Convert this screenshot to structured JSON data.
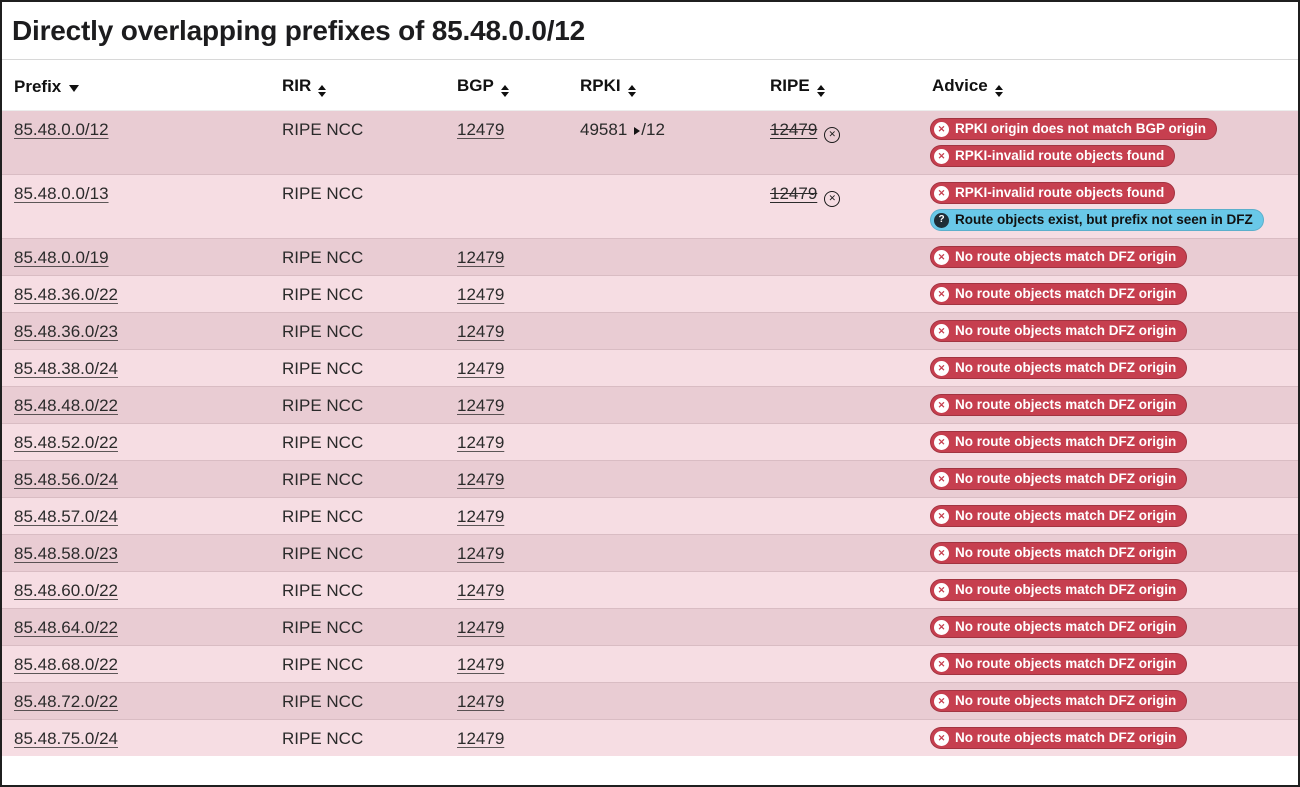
{
  "page": {
    "title": "Directly overlapping prefixes of 85.48.0.0/12"
  },
  "colors": {
    "row_stripe_dark": "#e9ccd3",
    "row_stripe_light": "#f6dde3",
    "row_border": "#d9bcc3",
    "badge_danger": "#c63f4f",
    "badge_danger_text": "#ffffff",
    "badge_info": "#69c8e8",
    "badge_info_text": "#111111",
    "badge_info_icon_bg": "#1f2d36",
    "link_text": "#2b2b2b"
  },
  "icons": {
    "danger_badge": "circle-x-icon",
    "danger_badge_glyph": "✕",
    "info_badge": "circle-question-icon",
    "info_badge_glyph": "?",
    "ripe_invalid": "circled-x-icon",
    "ripe_invalid_glyph": "✕",
    "prefix_sort": "triangle-down-icon",
    "column_sort": "triangle-up-down-icon",
    "rpki_max_length": "triangle-right-icon"
  },
  "table": {
    "columns": [
      {
        "key": "prefix",
        "label": "Prefix",
        "sort": "desc"
      },
      {
        "key": "rir",
        "label": "RIR",
        "sort": "both"
      },
      {
        "key": "bgp",
        "label": "BGP",
        "sort": "both"
      },
      {
        "key": "rpki",
        "label": "RPKI",
        "sort": "both"
      },
      {
        "key": "ripe",
        "label": "RIPE",
        "sort": "both"
      },
      {
        "key": "advice",
        "label": "Advice",
        "sort": "both"
      }
    ],
    "rows": [
      {
        "prefix": "85.48.0.0/12",
        "rir": "RIPE NCC",
        "bgp": "12479",
        "rpki": {
          "asn": "49581",
          "max_length": "/12"
        },
        "ripe": {
          "asn": "12479",
          "invalid": true
        },
        "advice": [
          {
            "type": "danger",
            "text": "RPKI origin does not match BGP origin"
          },
          {
            "type": "danger",
            "text": "RPKI-invalid route objects found"
          }
        ]
      },
      {
        "prefix": "85.48.0.0/13",
        "rir": "RIPE NCC",
        "bgp": null,
        "rpki": null,
        "ripe": {
          "asn": "12479",
          "invalid": true
        },
        "advice": [
          {
            "type": "danger",
            "text": "RPKI-invalid route objects found"
          },
          {
            "type": "info",
            "text": "Route objects exist, but prefix not seen in DFZ"
          }
        ]
      },
      {
        "prefix": "85.48.0.0/19",
        "rir": "RIPE NCC",
        "bgp": "12479",
        "rpki": null,
        "ripe": null,
        "advice": [
          {
            "type": "danger",
            "text": "No route objects match DFZ origin"
          }
        ]
      },
      {
        "prefix": "85.48.36.0/22",
        "rir": "RIPE NCC",
        "bgp": "12479",
        "rpki": null,
        "ripe": null,
        "advice": [
          {
            "type": "danger",
            "text": "No route objects match DFZ origin"
          }
        ]
      },
      {
        "prefix": "85.48.36.0/23",
        "rir": "RIPE NCC",
        "bgp": "12479",
        "rpki": null,
        "ripe": null,
        "advice": [
          {
            "type": "danger",
            "text": "No route objects match DFZ origin"
          }
        ]
      },
      {
        "prefix": "85.48.38.0/24",
        "rir": "RIPE NCC",
        "bgp": "12479",
        "rpki": null,
        "ripe": null,
        "advice": [
          {
            "type": "danger",
            "text": "No route objects match DFZ origin"
          }
        ]
      },
      {
        "prefix": "85.48.48.0/22",
        "rir": "RIPE NCC",
        "bgp": "12479",
        "rpki": null,
        "ripe": null,
        "advice": [
          {
            "type": "danger",
            "text": "No route objects match DFZ origin"
          }
        ]
      },
      {
        "prefix": "85.48.52.0/22",
        "rir": "RIPE NCC",
        "bgp": "12479",
        "rpki": null,
        "ripe": null,
        "advice": [
          {
            "type": "danger",
            "text": "No route objects match DFZ origin"
          }
        ]
      },
      {
        "prefix": "85.48.56.0/24",
        "rir": "RIPE NCC",
        "bgp": "12479",
        "rpki": null,
        "ripe": null,
        "advice": [
          {
            "type": "danger",
            "text": "No route objects match DFZ origin"
          }
        ]
      },
      {
        "prefix": "85.48.57.0/24",
        "rir": "RIPE NCC",
        "bgp": "12479",
        "rpki": null,
        "ripe": null,
        "advice": [
          {
            "type": "danger",
            "text": "No route objects match DFZ origin"
          }
        ]
      },
      {
        "prefix": "85.48.58.0/23",
        "rir": "RIPE NCC",
        "bgp": "12479",
        "rpki": null,
        "ripe": null,
        "advice": [
          {
            "type": "danger",
            "text": "No route objects match DFZ origin"
          }
        ]
      },
      {
        "prefix": "85.48.60.0/22",
        "rir": "RIPE NCC",
        "bgp": "12479",
        "rpki": null,
        "ripe": null,
        "advice": [
          {
            "type": "danger",
            "text": "No route objects match DFZ origin"
          }
        ]
      },
      {
        "prefix": "85.48.64.0/22",
        "rir": "RIPE NCC",
        "bgp": "12479",
        "rpki": null,
        "ripe": null,
        "advice": [
          {
            "type": "danger",
            "text": "No route objects match DFZ origin"
          }
        ]
      },
      {
        "prefix": "85.48.68.0/22",
        "rir": "RIPE NCC",
        "bgp": "12479",
        "rpki": null,
        "ripe": null,
        "advice": [
          {
            "type": "danger",
            "text": "No route objects match DFZ origin"
          }
        ]
      },
      {
        "prefix": "85.48.72.0/22",
        "rir": "RIPE NCC",
        "bgp": "12479",
        "rpki": null,
        "ripe": null,
        "advice": [
          {
            "type": "danger",
            "text": "No route objects match DFZ origin"
          }
        ]
      },
      {
        "prefix": "85.48.75.0/24",
        "rir": "RIPE NCC",
        "bgp": "12479",
        "rpki": null,
        "ripe": null,
        "advice": [
          {
            "type": "danger",
            "text": "No route objects match DFZ origin"
          }
        ]
      }
    ]
  }
}
